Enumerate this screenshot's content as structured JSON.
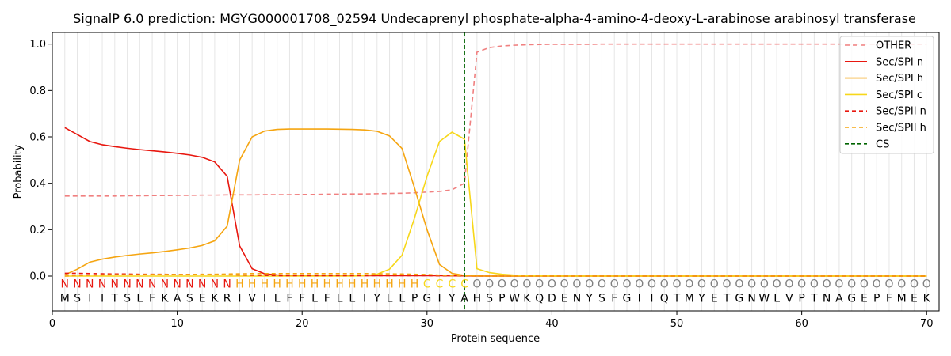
{
  "chart_data": {
    "type": "line",
    "title": "SignalP 6.0 prediction: MGYG000001708_02594 Undecaprenyl phosphate-alpha-4-amino-4-deoxy-L-arabinose arabinosyl transferase",
    "xlabel": "Protein sequence",
    "ylabel": "Probability",
    "xlim": [
      0,
      71
    ],
    "ylim": [
      -0.15,
      1.05
    ],
    "xticks": [
      0,
      10,
      20,
      30,
      40,
      50,
      60,
      70
    ],
    "yticks": [
      "0.0",
      "0.2",
      "0.4",
      "0.6",
      "0.8",
      "1.0"
    ],
    "ytick_values": [
      0.0,
      0.2,
      0.4,
      0.6,
      0.8,
      1.0
    ],
    "grid": "vertical lines at each residue",
    "legend_position": "upper-right",
    "x": [
      1,
      2,
      3,
      4,
      5,
      6,
      7,
      8,
      9,
      10,
      11,
      12,
      13,
      14,
      15,
      16,
      17,
      18,
      19,
      20,
      21,
      22,
      23,
      24,
      25,
      26,
      27,
      28,
      29,
      30,
      31,
      32,
      33,
      34,
      35,
      36,
      37,
      38,
      39,
      40,
      41,
      42,
      43,
      44,
      45,
      46,
      47,
      48,
      49,
      50,
      51,
      52,
      53,
      54,
      55,
      56,
      57,
      58,
      59,
      60,
      61,
      62,
      63,
      64,
      65,
      66,
      67,
      68,
      69,
      70
    ],
    "series": [
      {
        "name": "OTHER",
        "color": "#f08080",
        "dash": "6,4",
        "values": [
          0.345,
          0.345,
          0.345,
          0.345,
          0.345,
          0.346,
          0.346,
          0.347,
          0.347,
          0.348,
          0.348,
          0.349,
          0.349,
          0.35,
          0.35,
          0.35,
          0.351,
          0.351,
          0.351,
          0.352,
          0.352,
          0.353,
          0.353,
          0.354,
          0.354,
          0.355,
          0.356,
          0.357,
          0.359,
          0.362,
          0.365,
          0.372,
          0.4,
          0.965,
          0.985,
          0.992,
          0.995,
          0.997,
          0.998,
          0.999,
          0.999,
          0.999,
          0.999,
          1.0,
          1.0,
          1.0,
          1.0,
          1.0,
          1.0,
          1.0,
          1.0,
          1.0,
          1.0,
          1.0,
          1.0,
          1.0,
          1.0,
          1.0,
          1.0,
          1.0,
          1.0,
          1.0,
          1.0,
          0.999,
          0.999,
          0.999,
          0.999,
          0.999,
          0.998,
          0.998
        ]
      },
      {
        "name": "Sec/SPI n",
        "color": "#e8170f",
        "dash": "",
        "values": [
          0.64,
          0.61,
          0.58,
          0.566,
          0.558,
          0.551,
          0.545,
          0.54,
          0.535,
          0.529,
          0.522,
          0.512,
          0.492,
          0.43,
          0.13,
          0.032,
          0.01,
          0.005,
          0.003,
          0.002,
          0.002,
          0.002,
          0.002,
          0.002,
          0.002,
          0.002,
          0.002,
          0.002,
          0.002,
          0.002,
          0.002,
          0.001,
          0.001,
          0.0,
          0.0,
          0.0,
          0.0,
          0.0,
          0.0,
          0.0,
          0.0,
          0.0,
          0.0,
          0.0,
          0.0,
          0.0,
          0.0,
          0.0,
          0.0,
          0.0,
          0.0,
          0.0,
          0.0,
          0.0,
          0.0,
          0.0,
          0.0,
          0.0,
          0.0,
          0.0,
          0.0,
          0.0,
          0.0,
          0.0,
          0.0,
          0.0,
          0.0,
          0.0,
          0.0,
          0.0
        ]
      },
      {
        "name": "Sec/SPI h",
        "color": "#f5a511",
        "dash": "",
        "values": [
          0.005,
          0.03,
          0.06,
          0.073,
          0.082,
          0.089,
          0.095,
          0.1,
          0.106,
          0.113,
          0.121,
          0.132,
          0.152,
          0.215,
          0.5,
          0.6,
          0.625,
          0.632,
          0.634,
          0.634,
          0.634,
          0.634,
          0.633,
          0.632,
          0.63,
          0.624,
          0.604,
          0.55,
          0.38,
          0.2,
          0.05,
          0.012,
          0.003,
          0.001,
          0.0,
          0.0,
          0.0,
          0.0,
          0.0,
          0.0,
          0.0,
          0.0,
          0.0,
          0.0,
          0.0,
          0.0,
          0.0,
          0.0,
          0.0,
          0.0,
          0.0,
          0.0,
          0.0,
          0.0,
          0.0,
          0.0,
          0.0,
          0.0,
          0.0,
          0.0,
          0.0,
          0.0,
          0.0,
          0.0,
          0.0,
          0.0,
          0.0,
          0.0,
          0.0,
          0.0
        ]
      },
      {
        "name": "Sec/SPI c",
        "color": "#f7d71a",
        "dash": "",
        "values": [
          0.0,
          0.0,
          0.0,
          0.0,
          0.0,
          0.0,
          0.0,
          0.0,
          0.0,
          0.0,
          0.0,
          0.0,
          0.0,
          0.0,
          0.0,
          0.0,
          0.0,
          0.0,
          0.0,
          0.0,
          0.0,
          0.0,
          0.0,
          0.0,
          0.002,
          0.008,
          0.03,
          0.09,
          0.25,
          0.43,
          0.58,
          0.62,
          0.59,
          0.032,
          0.015,
          0.008,
          0.004,
          0.002,
          0.001,
          0.001,
          0.0,
          0.0,
          0.0,
          0.0,
          0.0,
          0.0,
          0.0,
          0.0,
          0.0,
          0.0,
          0.0,
          0.0,
          0.0,
          0.0,
          0.0,
          0.0,
          0.0,
          0.0,
          0.0,
          0.0,
          0.0,
          0.0,
          0.0,
          0.0,
          0.0,
          0.0,
          0.0,
          0.0,
          0.0,
          0.0
        ]
      },
      {
        "name": "Sec/SPII n",
        "color": "#e8170f",
        "dash": "5,4",
        "values": [
          0.012,
          0.012,
          0.011,
          0.01,
          0.009,
          0.009,
          0.008,
          0.008,
          0.008,
          0.007,
          0.007,
          0.007,
          0.007,
          0.006,
          0.005,
          0.004,
          0.003,
          0.002,
          0.002,
          0.002,
          0.002,
          0.002,
          0.002,
          0.002,
          0.002,
          0.002,
          0.002,
          0.002,
          0.002,
          0.002,
          0.001,
          0.001,
          0.0,
          0.0,
          0.0,
          0.0,
          0.0,
          0.0,
          0.0,
          0.0,
          0.0,
          0.0,
          0.0,
          0.0,
          0.0,
          0.0,
          0.0,
          0.0,
          0.0,
          0.0,
          0.0,
          0.0,
          0.0,
          0.0,
          0.0,
          0.0,
          0.0,
          0.0,
          0.0,
          0.0,
          0.0,
          0.0,
          0.0,
          0.0,
          0.0,
          0.0,
          0.0,
          0.0,
          0.0,
          0.0
        ]
      },
      {
        "name": "Sec/SPII h",
        "color": "#f5a511",
        "dash": "5,4",
        "values": [
          0.0,
          0.002,
          0.004,
          0.005,
          0.006,
          0.006,
          0.006,
          0.007,
          0.007,
          0.007,
          0.007,
          0.008,
          0.008,
          0.009,
          0.01,
          0.011,
          0.011,
          0.011,
          0.011,
          0.011,
          0.011,
          0.011,
          0.011,
          0.011,
          0.011,
          0.01,
          0.01,
          0.009,
          0.008,
          0.007,
          0.004,
          0.002,
          0.001,
          0.0,
          0.0,
          0.0,
          0.0,
          0.0,
          0.0,
          0.0,
          0.0,
          0.0,
          0.0,
          0.0,
          0.0,
          0.0,
          0.0,
          0.0,
          0.0,
          0.0,
          0.0,
          0.0,
          0.0,
          0.0,
          0.0,
          0.0,
          0.0,
          0.0,
          0.0,
          0.0,
          0.0,
          0.0,
          0.0,
          0.0,
          0.0,
          0.0,
          0.0,
          0.0,
          0.0,
          0.0
        ]
      }
    ],
    "cs": {
      "name": "CS",
      "x": 33,
      "color": "#006400"
    },
    "residue_labels": [
      "N",
      "N",
      "N",
      "N",
      "N",
      "N",
      "N",
      "N",
      "N",
      "N",
      "N",
      "N",
      "N",
      "N",
      "H",
      "H",
      "H",
      "H",
      "H",
      "H",
      "H",
      "H",
      "H",
      "H",
      "H",
      "H",
      "H",
      "H",
      "H",
      "C",
      "C",
      "C",
      "C",
      "O",
      "O",
      "O",
      "O",
      "O",
      "O",
      "O",
      "O",
      "O",
      "O",
      "O",
      "O",
      "O",
      "O",
      "O",
      "O",
      "O",
      "O",
      "O",
      "O",
      "O",
      "O",
      "O",
      "O",
      "O",
      "O",
      "O",
      "O",
      "O",
      "O",
      "O",
      "O",
      "O",
      "O",
      "O",
      "O",
      "O"
    ],
    "residue_label_colors": {
      "N": "#e8170f",
      "H": "#f5a511",
      "C": "#f7d71a",
      "O": "#808080"
    },
    "sequence": [
      "M",
      "S",
      "I",
      "I",
      "T",
      "S",
      "L",
      "F",
      "K",
      "A",
      "S",
      "E",
      "K",
      "R",
      "I",
      "V",
      "I",
      "L",
      "F",
      "F",
      "L",
      "F",
      "L",
      "L",
      "I",
      "Y",
      "L",
      "L",
      "P",
      "G",
      "I",
      "Y",
      "A",
      "H",
      "S",
      "P",
      "W",
      "K",
      "Q",
      "D",
      "E",
      "N",
      "Y",
      "S",
      "F",
      "G",
      "I",
      "I",
      "Q",
      "T",
      "M",
      "Y",
      "E",
      "T",
      "G",
      "N",
      "W",
      "L",
      "V",
      "P",
      "T",
      "N",
      "A",
      "G",
      "E",
      "P",
      "F",
      "M",
      "E",
      "K"
    ]
  }
}
